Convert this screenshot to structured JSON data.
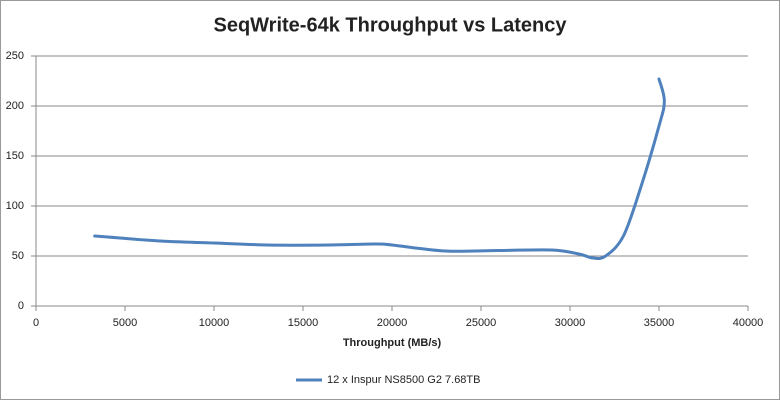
{
  "chart_data": {
    "type": "line",
    "title": "SeqWrite-64k Throughput vs Latency",
    "x_label": "Throughput (MB/s)",
    "x": [
      3300,
      7000,
      10000,
      13000,
      16500,
      19000,
      20000,
      23000,
      26000,
      29000,
      30500,
      31300,
      32000,
      33000,
      34000,
      35000,
      35300,
      35000
    ],
    "series": [
      {
        "name": "12 x Inspur NS8500 G2 7.68TB",
        "color": "#4f81bd",
        "values": [
          70,
          65,
          63,
          61,
          61,
          62,
          61,
          55,
          55.5,
          56,
          52,
          48,
          50,
          70,
          120,
          180,
          205,
          227
        ]
      }
    ],
    "xlim": [
      0,
      40000
    ],
    "xticks": [
      0,
      5000,
      10000,
      15000,
      20000,
      25000,
      30000,
      35000,
      40000
    ],
    "ylim": [
      0,
      250
    ],
    "yticks": [
      0,
      50,
      100,
      150,
      200,
      250
    ],
    "grid": true,
    "legend": "bottom"
  }
}
